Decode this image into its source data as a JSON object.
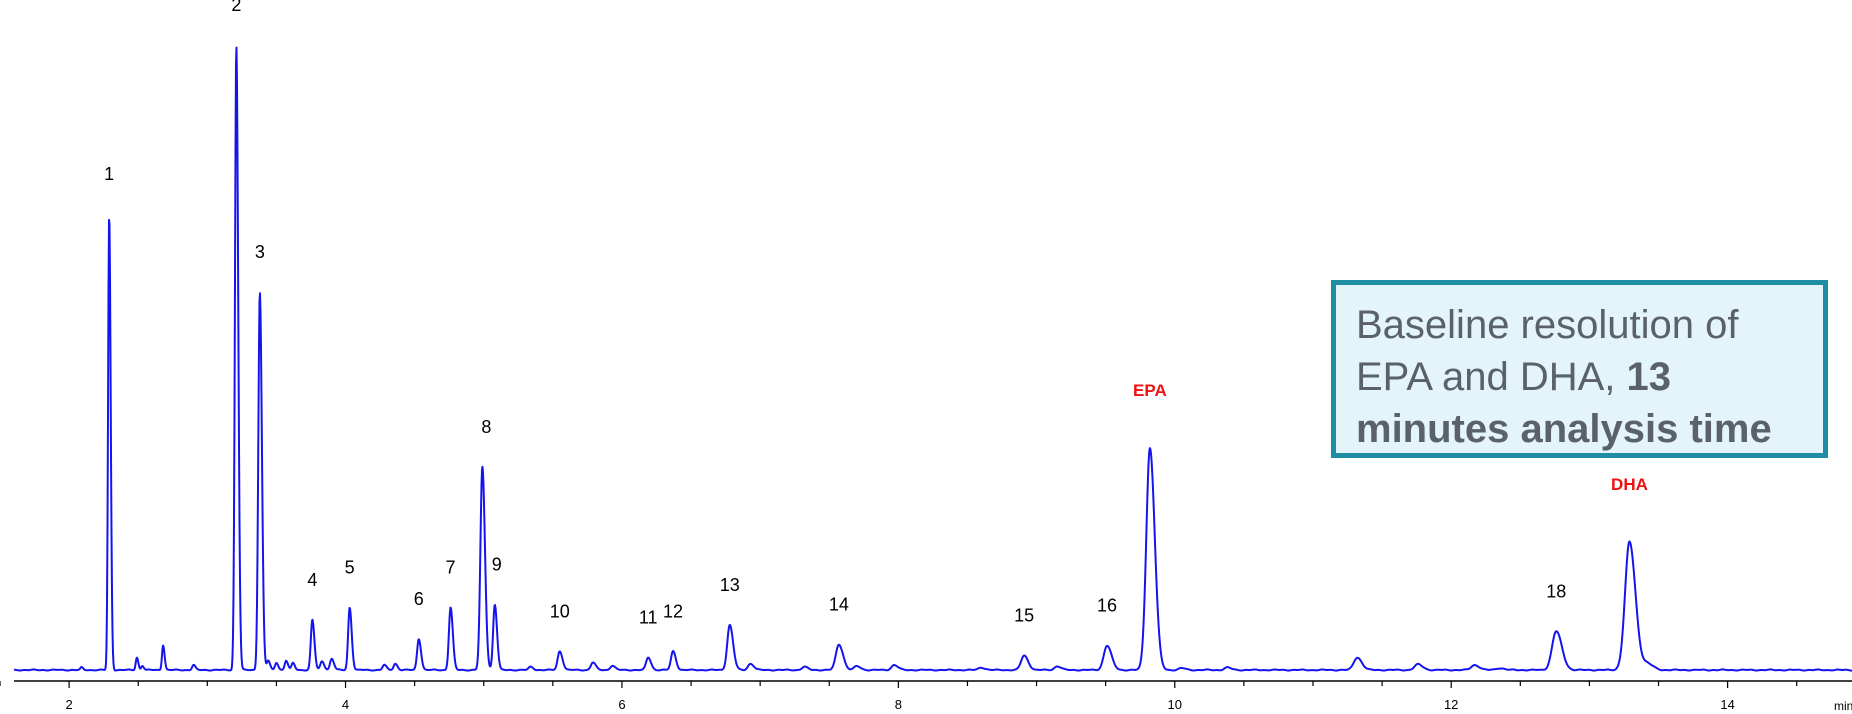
{
  "chart_data": {
    "type": "line",
    "x_unit_label": "min",
    "xlim": [
      1.5,
      14.9
    ],
    "x_ticks": [
      2,
      4,
      6,
      8,
      10,
      12,
      14
    ],
    "baseline": 0,
    "ylim": [
      -0.5,
      100
    ],
    "peaks": [
      {
        "label": "1",
        "x": 2.29,
        "y": 73,
        "w": 0.008
      },
      {
        "label": "2",
        "x": 3.21,
        "y": 100,
        "w": 0.01
      },
      {
        "label": "3",
        "x": 3.38,
        "y": 60.5,
        "w": 0.011
      },
      {
        "label": "4",
        "x": 3.76,
        "y": 8,
        "w": 0.011
      },
      {
        "label": "5",
        "x": 4.03,
        "y": 10,
        "w": 0.011
      },
      {
        "label": "6",
        "x": 4.53,
        "y": 5,
        "w": 0.012
      },
      {
        "label": "7",
        "x": 4.76,
        "y": 10,
        "w": 0.012
      },
      {
        "label": "8",
        "x": 4.99,
        "y": 32.5,
        "w": 0.014
      },
      {
        "label": "9",
        "x": 5.08,
        "y": 10.5,
        "w": 0.012
      },
      {
        "label": "10",
        "x": 5.55,
        "y": 3,
        "w": 0.015
      },
      {
        "label": "11",
        "x": 6.19,
        "y": 2,
        "w": 0.015
      },
      {
        "label": "12",
        "x": 6.37,
        "y": 3,
        "w": 0.015
      },
      {
        "label": "13",
        "x": 6.78,
        "y": 7.2,
        "w": 0.018
      },
      {
        "label": "14",
        "x": 7.57,
        "y": 4.1,
        "w": 0.022
      },
      {
        "label": "15",
        "x": 8.91,
        "y": 2.3,
        "w": 0.022
      },
      {
        "label": "16",
        "x": 9.51,
        "y": 3.9,
        "w": 0.024
      },
      {
        "label": "EPA",
        "x": 9.82,
        "y": 35.5,
        "w": 0.026
      },
      {
        "label": "18",
        "x": 12.76,
        "y": 6.2,
        "w": 0.03
      },
      {
        "label": "DHA",
        "x": 13.29,
        "y": 20.5,
        "w": 0.032
      }
    ],
    "minor_peaks": [
      {
        "x": 1.57,
        "y": 1.2,
        "w": 0.006
      },
      {
        "x": 2.09,
        "y": 0.4,
        "w": 0.008
      },
      {
        "x": 2.49,
        "y": 2.0,
        "w": 0.008
      },
      {
        "x": 2.53,
        "y": 0.7,
        "w": 0.008
      },
      {
        "x": 2.68,
        "y": 4.0,
        "w": 0.008
      },
      {
        "x": 2.9,
        "y": 0.8,
        "w": 0.01
      },
      {
        "x": 3.44,
        "y": 1.5,
        "w": 0.01
      },
      {
        "x": 3.5,
        "y": 1.2,
        "w": 0.01
      },
      {
        "x": 3.57,
        "y": 1.5,
        "w": 0.01
      },
      {
        "x": 3.62,
        "y": 1.1,
        "w": 0.01
      },
      {
        "x": 3.83,
        "y": 1.4,
        "w": 0.012
      },
      {
        "x": 3.9,
        "y": 1.8,
        "w": 0.012
      },
      {
        "x": 4.28,
        "y": 0.8,
        "w": 0.012
      },
      {
        "x": 4.36,
        "y": 1.0,
        "w": 0.012
      },
      {
        "x": 5.34,
        "y": 0.5,
        "w": 0.014
      },
      {
        "x": 5.79,
        "y": 1.2,
        "w": 0.015
      },
      {
        "x": 5.93,
        "y": 0.7,
        "w": 0.015
      },
      {
        "x": 6.93,
        "y": 1.0,
        "w": 0.018
      },
      {
        "x": 7.32,
        "y": 0.5,
        "w": 0.018
      },
      {
        "x": 7.7,
        "y": 0.6,
        "w": 0.02
      },
      {
        "x": 7.97,
        "y": 0.8,
        "w": 0.02
      },
      {
        "x": 8.6,
        "y": 0.4,
        "w": 0.02
      },
      {
        "x": 9.15,
        "y": 0.6,
        "w": 0.02
      },
      {
        "x": 10.05,
        "y": 0.3,
        "w": 0.02
      },
      {
        "x": 10.38,
        "y": 0.4,
        "w": 0.02
      },
      {
        "x": 11.32,
        "y": 2.0,
        "w": 0.025
      },
      {
        "x": 11.76,
        "y": 0.9,
        "w": 0.025
      },
      {
        "x": 12.17,
        "y": 0.8,
        "w": 0.025
      },
      {
        "x": 12.35,
        "y": 0.3,
        "w": 0.025
      },
      {
        "x": 13.42,
        "y": 1.0,
        "w": 0.03
      }
    ],
    "highlight_labels": [
      "EPA",
      "DHA"
    ],
    "colors": {
      "trace": "#1414ee",
      "highlight": "#ee1111",
      "text": "#000000"
    }
  },
  "annotation": {
    "text_plain": "Baseline resolution of EPA and DHA, ",
    "text_bold": "13 minutes analysis time",
    "border_color": "#1f8ea3",
    "background": "#e3f4fb",
    "text_color": "#5a6169"
  }
}
